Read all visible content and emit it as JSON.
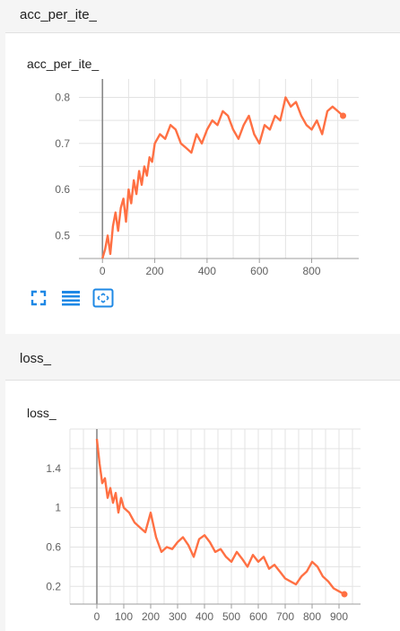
{
  "sections": [
    {
      "header_title": "acc_per_ite_",
      "card_title": "acc_per_ite_"
    },
    {
      "header_title": "loss_",
      "card_title": "loss_"
    }
  ],
  "toolbar": {
    "icons": [
      "fullscreen-icon",
      "data-selection-icon",
      "fit-domain-icon"
    ]
  },
  "colors": {
    "series": "#ff7043",
    "axis": "#9e9e9e",
    "grid": "#e3e3e3"
  },
  "chart_data": [
    {
      "type": "line",
      "title": "acc_per_ite_",
      "x_ticks": [
        0,
        200,
        400,
        600,
        800
      ],
      "y_ticks": [
        0.5,
        0.6,
        0.7,
        0.8
      ],
      "xlim": [
        -90,
        980
      ],
      "ylim": [
        0.45,
        0.84
      ],
      "series": [
        {
          "x": [
            0,
            10,
            20,
            30,
            40,
            50,
            60,
            70,
            80,
            90,
            100,
            110,
            120,
            130,
            140,
            150,
            160,
            170,
            180,
            190,
            200,
            220,
            240,
            260,
            280,
            300,
            320,
            340,
            360,
            380,
            400,
            420,
            440,
            460,
            480,
            500,
            520,
            540,
            560,
            580,
            600,
            620,
            640,
            660,
            680,
            700,
            720,
            740,
            760,
            780,
            800,
            820,
            840,
            860,
            880,
            900,
            920
          ],
          "y": [
            0.45,
            0.47,
            0.5,
            0.46,
            0.52,
            0.55,
            0.51,
            0.56,
            0.58,
            0.53,
            0.6,
            0.57,
            0.62,
            0.59,
            0.64,
            0.61,
            0.65,
            0.63,
            0.67,
            0.66,
            0.7,
            0.72,
            0.71,
            0.74,
            0.73,
            0.7,
            0.69,
            0.68,
            0.72,
            0.7,
            0.73,
            0.75,
            0.74,
            0.77,
            0.76,
            0.73,
            0.71,
            0.74,
            0.76,
            0.72,
            0.7,
            0.74,
            0.73,
            0.76,
            0.75,
            0.8,
            0.78,
            0.79,
            0.76,
            0.74,
            0.73,
            0.75,
            0.72,
            0.77,
            0.78,
            0.77,
            0.76
          ]
        }
      ]
    },
    {
      "type": "line",
      "title": "loss_",
      "x_ticks": [
        0,
        100,
        200,
        300,
        400,
        500,
        600,
        700,
        800,
        900
      ],
      "y_ticks": [
        0.2,
        0.6,
        1,
        1.4
      ],
      "xlim": [
        -100,
        980
      ],
      "ylim": [
        0.02,
        1.8
      ],
      "series": [
        {
          "x": [
            0,
            10,
            20,
            30,
            40,
            50,
            60,
            70,
            80,
            90,
            100,
            120,
            140,
            160,
            180,
            200,
            220,
            240,
            260,
            280,
            300,
            320,
            340,
            360,
            380,
            400,
            420,
            440,
            460,
            480,
            500,
            520,
            540,
            560,
            580,
            600,
            620,
            640,
            660,
            680,
            700,
            720,
            740,
            760,
            780,
            800,
            820,
            840,
            860,
            880,
            900,
            920
          ],
          "y": [
            1.7,
            1.45,
            1.25,
            1.3,
            1.1,
            1.2,
            1.05,
            1.15,
            0.95,
            1.1,
            1.0,
            0.95,
            0.85,
            0.8,
            0.75,
            0.95,
            0.7,
            0.55,
            0.6,
            0.58,
            0.65,
            0.7,
            0.62,
            0.5,
            0.68,
            0.72,
            0.65,
            0.55,
            0.58,
            0.5,
            0.45,
            0.55,
            0.48,
            0.4,
            0.52,
            0.45,
            0.5,
            0.38,
            0.42,
            0.35,
            0.28,
            0.25,
            0.22,
            0.3,
            0.35,
            0.45,
            0.4,
            0.3,
            0.25,
            0.18,
            0.15,
            0.12
          ]
        }
      ]
    }
  ]
}
